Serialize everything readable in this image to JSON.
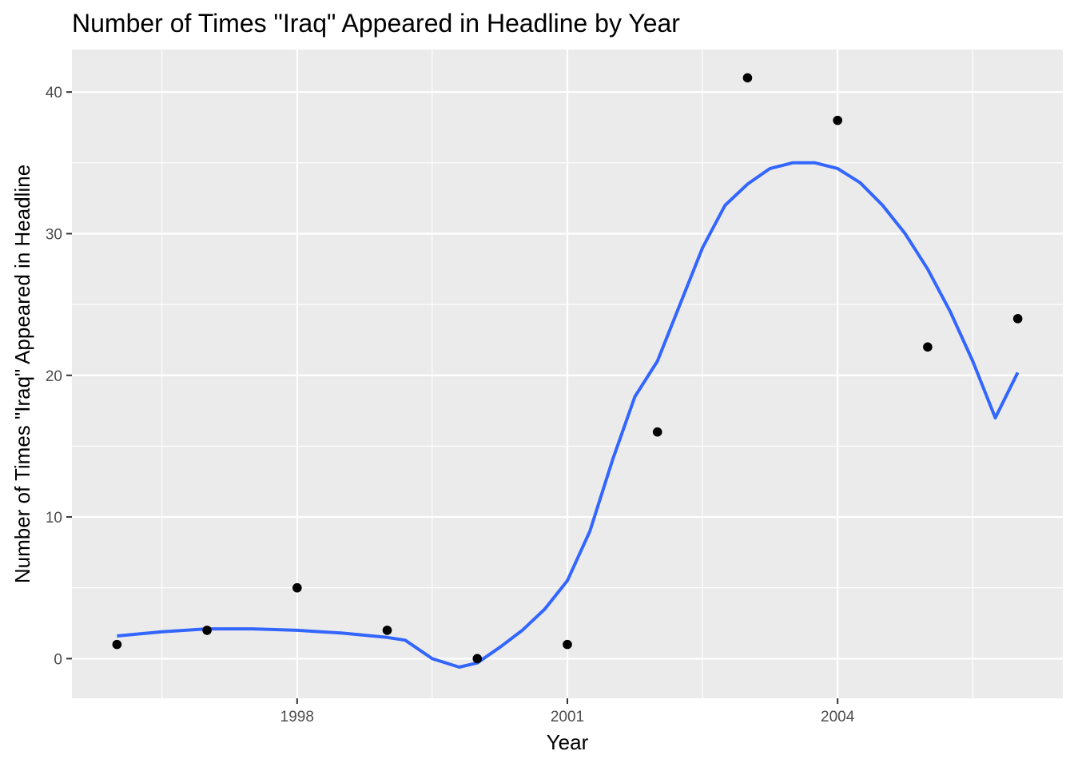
{
  "chart_data": {
    "type": "scatter",
    "title": "Number of Times \"Iraq\" Appeared in Headline by Year",
    "xlabel": "Year",
    "ylabel": "Number of Times \"Iraq\" Appeared in Headline",
    "xlim": [
      1995.5,
      2006.5
    ],
    "ylim": [
      -2.8,
      43.0
    ],
    "x_ticks": [
      1998,
      2001,
      2004
    ],
    "x_minor_ticks": [
      1996.5,
      1999.5,
      2002.5,
      2005.5
    ],
    "y_ticks": [
      0,
      10,
      20,
      30,
      40
    ],
    "y_minor_ticks": [
      5,
      15,
      25,
      35
    ],
    "grid": true,
    "legend": "none",
    "points": {
      "x": [
        1996,
        1997,
        1998,
        1999,
        2000,
        2001,
        2002,
        2003,
        2004,
        2005,
        2006
      ],
      "y": [
        1,
        2,
        5,
        2,
        0,
        1,
        16,
        41,
        38,
        22,
        24
      ],
      "color": "#000000"
    },
    "smooth": {
      "color": "#3366FF",
      "x": [
        1996.0,
        1996.5,
        1997.0,
        1997.5,
        1998.0,
        1998.5,
        1999.0,
        1999.2,
        1999.5,
        1999.8,
        2000.0,
        2000.25,
        2000.5,
        2000.75,
        2001.0,
        2001.25,
        2001.5,
        2001.75,
        2002.0,
        2002.25,
        2002.5,
        2002.75,
        2003.0,
        2003.25,
        2003.5,
        2003.75,
        2004.0,
        2004.25,
        2004.5,
        2004.75,
        2005.0,
        2005.25,
        2005.5,
        2005.75,
        2006.0
      ],
      "y": [
        1.6,
        1.9,
        2.1,
        2.1,
        2.0,
        1.8,
        1.5,
        1.3,
        0.0,
        -0.6,
        -0.3,
        0.8,
        2.0,
        3.5,
        5.5,
        9.0,
        14.0,
        18.5,
        21.0,
        25.0,
        29.0,
        32.0,
        33.5,
        34.6,
        35.0,
        35.0,
        34.6,
        33.6,
        32.0,
        30.0,
        27.5,
        24.5,
        21.0,
        17.0,
        20.2
      ]
    }
  }
}
